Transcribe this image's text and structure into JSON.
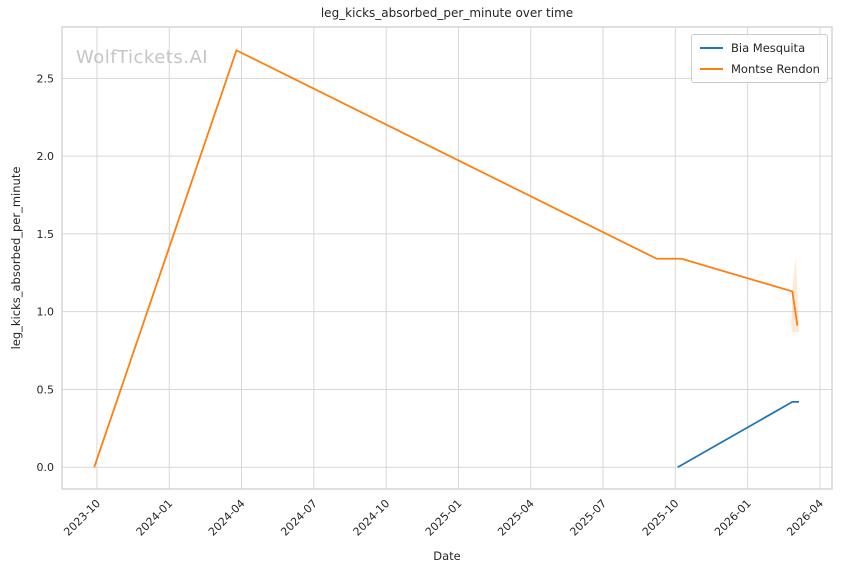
{
  "figure": {
    "title": "leg_kicks_absorbed_per_minute over time",
    "watermark": "WolfTickets.AI"
  },
  "axes": {
    "xlabel": "Date",
    "ylabel": "leg_kicks_absorbed_per_minute"
  },
  "legend": {
    "position": "upper-right",
    "items": [
      {
        "label": "Bia Mesquita",
        "color": "#1f77b4"
      },
      {
        "label": "Montse Rendon",
        "color": "#ff7f0e"
      }
    ]
  },
  "chart_data": {
    "type": "line",
    "title": "leg_kicks_absorbed_per_minute over time",
    "xlabel": "Date",
    "ylabel": "leg_kicks_absorbed_per_minute",
    "grid": true,
    "legend_position": "upper right",
    "x_tick_labels": [
      "2023-10",
      "2024-01",
      "2024-04",
      "2024-07",
      "2024-10",
      "2025-01",
      "2025-04",
      "2025-07",
      "2025-10",
      "2026-01",
      "2026-04"
    ],
    "y_tick_values": [
      0.0,
      0.5,
      1.0,
      1.5,
      2.0,
      2.5
    ],
    "xlim_months_from_first_tick": [
      -1.45,
      30.5
    ],
    "ylim": [
      -0.14,
      2.83
    ],
    "series": [
      {
        "name": "Bia Mesquita",
        "color": "#1f77b4",
        "points": [
          {
            "date": "2025-10-04",
            "value": 0.0
          },
          {
            "date": "2026-02-27",
            "value": 0.42
          },
          {
            "date": "2026-03-05",
            "value": 0.42
          }
        ]
      },
      {
        "name": "Montse Rendon",
        "color": "#ff7f0e",
        "points": [
          {
            "date": "2023-09-28",
            "value": 0.0
          },
          {
            "date": "2024-03-25",
            "value": 2.68
          },
          {
            "date": "2025-09-08",
            "value": 1.34
          },
          {
            "date": "2025-10-09",
            "value": 1.34
          },
          {
            "date": "2026-02-27",
            "value": 1.13
          },
          {
            "date": "2026-03-03",
            "value": 0.91
          }
        ]
      }
    ],
    "uncertainty_band": {
      "series": "Montse Rendon",
      "color": "#ff7f0e",
      "opacity": 0.18,
      "points": [
        {
          "date": "2026-02-27",
          "value": 1.14
        },
        {
          "date": "2026-03-01",
          "value": 1.35
        },
        {
          "date": "2026-03-05",
          "value": 0.87
        },
        {
          "date": "2026-02-26",
          "value": 0.87
        }
      ]
    },
    "styles": {
      "grid_color": "#d7d7d7",
      "spine_color": "#cccccc",
      "text_color": "#262626",
      "watermark_color": "#c5c5c5",
      "background": "#ffffff",
      "line_width": 1.8
    }
  }
}
